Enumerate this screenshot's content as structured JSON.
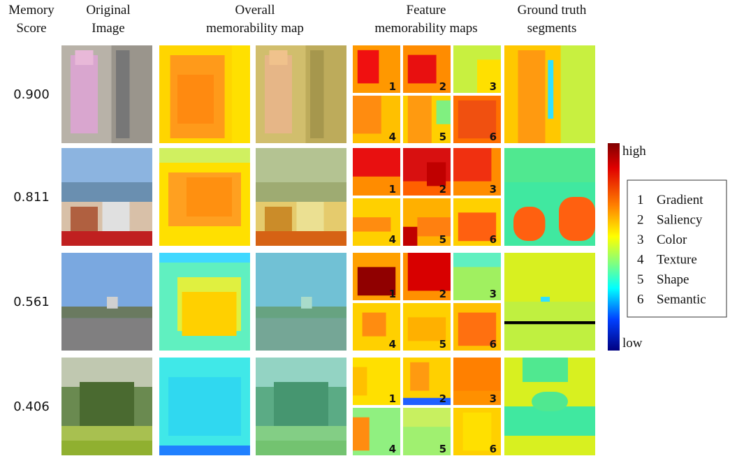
{
  "header": {
    "memory_score": [
      "Memory",
      "Score"
    ],
    "original_image": [
      "Original",
      "Image"
    ],
    "overall_map": [
      "Overall",
      "memorability map"
    ],
    "feature_maps": [
      "Feature",
      "memorability maps"
    ],
    "ground_truth": [
      "Ground truth",
      "segments"
    ]
  },
  "rows": [
    {
      "score": "0.900"
    },
    {
      "score": "0.811"
    },
    {
      "score": "0.561"
    },
    {
      "score": "0.406"
    }
  ],
  "colorbar": {
    "high": "high",
    "low": "low"
  },
  "legend": {
    "items": [
      {
        "number": "1",
        "name": "Gradient"
      },
      {
        "number": "2",
        "name": "Saliency"
      },
      {
        "number": "3",
        "name": "Color"
      },
      {
        "number": "4",
        "name": "Texture"
      },
      {
        "number": "5",
        "name": "Shape"
      },
      {
        "number": "6",
        "name": "Semantic"
      }
    ]
  }
}
